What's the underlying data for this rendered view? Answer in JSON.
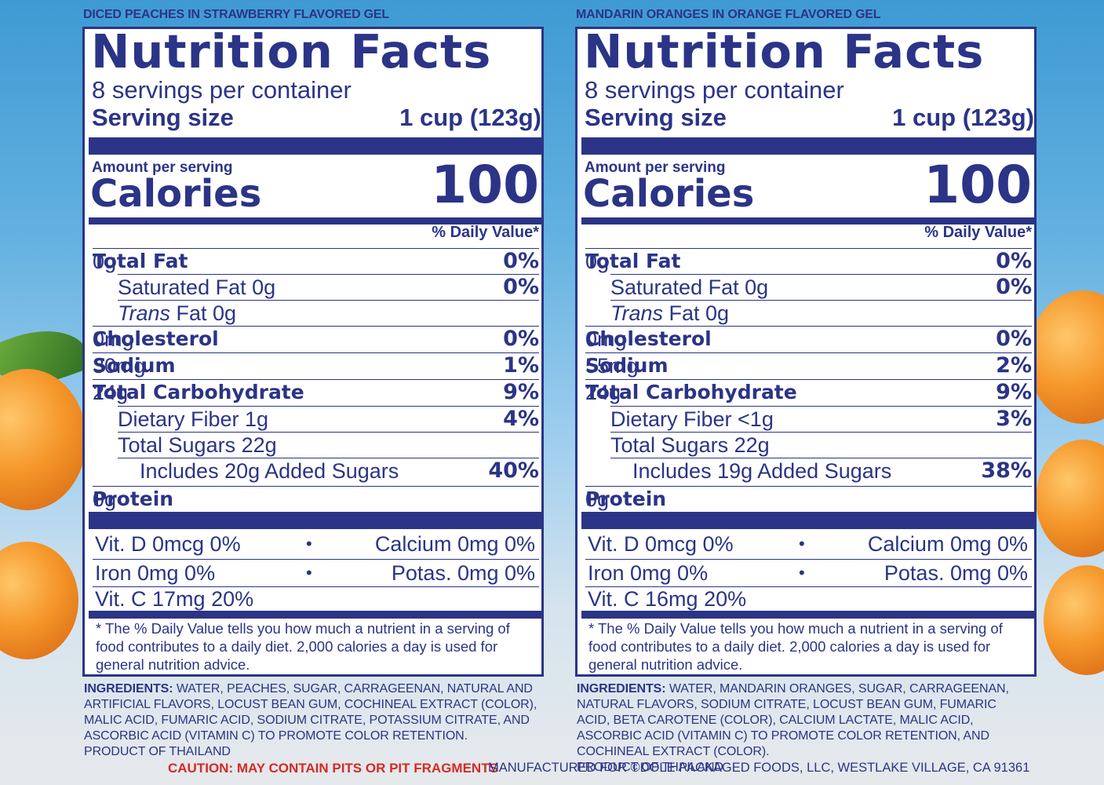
{
  "labels": [
    {
      "product_name": "DICED PEACHES IN STRAWBERRY FLAVORED GEL",
      "title": "Nutrition Facts",
      "servings_per_container": "8 servings per container",
      "serving_size_label": "Serving size",
      "serving_size_value": "1 cup (123g)",
      "amount_per_serving": "Amount per serving",
      "calories_label": "Calories",
      "calories_value": "100",
      "daily_value_header": "% Daily Value*",
      "total_fat": {
        "label": "Total Fat",
        "amount": " 0g",
        "pct": "0%"
      },
      "saturated_fat": {
        "label": "Saturated Fat 0g",
        "pct": "0%"
      },
      "trans_fat": {
        "label_italic": "Trans",
        "label_rest": " Fat 0g"
      },
      "cholesterol": {
        "label": "Cholesterol",
        "amount": " 0mg",
        "pct": "0%"
      },
      "sodium": {
        "label": "Sodium",
        "amount": " 30mg",
        "pct": "1%"
      },
      "total_carbohydrate": {
        "label": "Total Carbohydrate",
        "amount": " 24g",
        "pct": "9%"
      },
      "dietary_fiber": {
        "label": "Dietary Fiber 1g",
        "pct": "4%"
      },
      "total_sugars": {
        "label": "Total Sugars 22g"
      },
      "added_sugars": {
        "label": "Includes 20g Added Sugars",
        "pct": "40%"
      },
      "protein": {
        "label": "Protein",
        "amount": " 0g"
      },
      "vit_d": "Vit. D 0mcg 0%",
      "calcium": "Calcium 0mg 0%",
      "iron": "Iron 0mg 0%",
      "potassium": "Potas. 0mg 0%",
      "vit_c": "Vit. C 17mg 20%",
      "bullet": "•",
      "footnote": "* The % Daily Value tells you how much a nutrient in a serving of food contributes to a daily diet. 2,000 calories a day is used for general nutrition advice.",
      "ingredients_label": "INGREDIENTS:",
      "ingredients_text": " WATER, PEACHES, SUGAR, CARRAGEENAN, NATURAL AND ARTIFICIAL FLAVORS, LOCUST BEAN GUM, COCHINEAL EXTRACT (COLOR), MALIC ACID, FUMARIC ACID, SODIUM CITRATE, POTASSIUM CITRATE, AND ASCORBIC ACID (VITAMIN C) TO PROMOTE COLOR RETENTION.",
      "origin": "PRODUCT OF THAILAND"
    },
    {
      "product_name": "MANDARIN ORANGES IN ORANGE FLAVORED GEL",
      "title": "Nutrition Facts",
      "servings_per_container": "8 servings per container",
      "serving_size_label": "Serving size",
      "serving_size_value": "1 cup (123g)",
      "amount_per_serving": "Amount per serving",
      "calories_label": "Calories",
      "calories_value": "100",
      "daily_value_header": "% Daily Value*",
      "total_fat": {
        "label": "Total Fat",
        "amount": " 0g",
        "pct": "0%"
      },
      "saturated_fat": {
        "label": "Saturated Fat 0g",
        "pct": "0%"
      },
      "trans_fat": {
        "label_italic": "Trans",
        "label_rest": " Fat 0g"
      },
      "cholesterol": {
        "label": "Cholesterol",
        "amount": " 0mg",
        "pct": "0%"
      },
      "sodium": {
        "label": "Sodium",
        "amount": " 55mg",
        "pct": "2%"
      },
      "total_carbohydrate": {
        "label": "Total Carbohydrate",
        "amount": " 24g",
        "pct": "9%"
      },
      "dietary_fiber": {
        "label": "Dietary Fiber <1g",
        "pct": "3%"
      },
      "total_sugars": {
        "label": "Total Sugars 22g"
      },
      "added_sugars": {
        "label": "Includes 19g Added Sugars",
        "pct": "38%"
      },
      "protein": {
        "label": "Protein",
        "amount": " 0g"
      },
      "vit_d": "Vit. D 0mcg 0%",
      "calcium": "Calcium 0mg 0%",
      "iron": "Iron 0mg 0%",
      "potassium": "Potas. 0mg 0%",
      "vit_c": "Vit. C 16mg 20%",
      "bullet": "•",
      "footnote": "* The % Daily Value tells you how much a nutrient in a serving of food contributes to a daily diet. 2,000 calories a day is used for general nutrition advice.",
      "ingredients_label": "INGREDIENTS:",
      "ingredients_text": " WATER, MANDARIN ORANGES, SUGAR, CARRAGEENAN, NATURAL FLAVORS, SODIUM CITRATE, LOCUST BEAN GUM, FUMARIC ACID, BETA CAROTENE (COLOR), CALCIUM LACTATE, MALIC ACID, ASCORBIC ACID (VITAMIN C) TO PROMOTE COLOR RETENTION, AND COCHINEAL EXTRACT (COLOR).",
      "origin": "PRODUCT OF THAILAND"
    }
  ],
  "caution": "CAUTION: MAY CONTAIN PITS OR PIT FRAGMENTS",
  "manufacturer": "MANUFACTURED FOR ©DOLE PACKAGED FOODS, LLC, WESTLAKE VILLAGE, CA 91361",
  "colors": {
    "label_ink": "#2b3486",
    "caution_red": "#d42a24",
    "sky_blue": "#4aa3d9"
  }
}
